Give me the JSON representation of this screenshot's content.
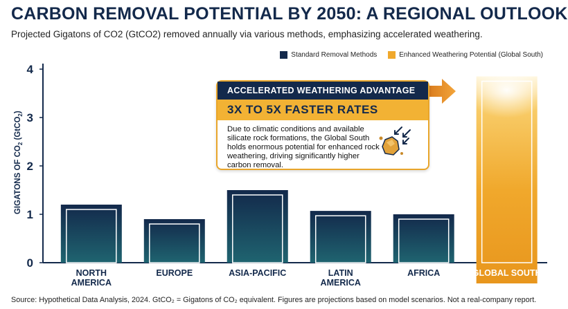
{
  "title": "CARBON REMOVAL POTENTIAL BY 2050: A REGIONAL OUTLOOK",
  "subtitle": "Projected Gigatons of CO2 (GtCO2) removed annually via various methods, emphasizing accelerated weathering.",
  "source_note": "Source: Hypothetical Data Analysis, 2024. GtCO₂ = Gigatons of CO₂ equivalent. Figures are projections based on model scenarios. Not a real-company report.",
  "callout": {
    "heading": "ACCELERATED WEATHERING ADVANTAGE",
    "highlight": "3X TO 5X FASTER RATES",
    "body": "Due to climatic conditions and available silicate rock formations, the Global South holds enormous potential for enhanced rock weathering, driving significantly higher carbon removal.",
    "icon": "rock-weathering-icon"
  },
  "colors": {
    "standard": "#13294b",
    "standard_light": "#1c5a6b",
    "enhanced": "#f0a82c",
    "title": "#13294b"
  },
  "chart_data": {
    "type": "bar",
    "ylabel": "GIGATONS OF CO₂ (GtCO₂)",
    "xlabel": "",
    "ylim": [
      0,
      4
    ],
    "yticks": [
      0,
      1,
      2,
      3,
      4
    ],
    "grid": false,
    "legend_position": "top-right",
    "categories": [
      "NORTH AMERICA",
      "EUROPE",
      "ASIA-PACIFIC",
      "LATIN AMERICA",
      "AFRICA",
      "GLOBAL SOUTH"
    ],
    "series": [
      {
        "name": "Standard Removal Methods",
        "values": [
          1.2,
          0.9,
          1.5,
          1.07,
          1.0,
          null
        ]
      },
      {
        "name": "Enhanced Weathering Potential (Global South)",
        "values": [
          null,
          null,
          null,
          null,
          null,
          3.85
        ]
      }
    ]
  }
}
